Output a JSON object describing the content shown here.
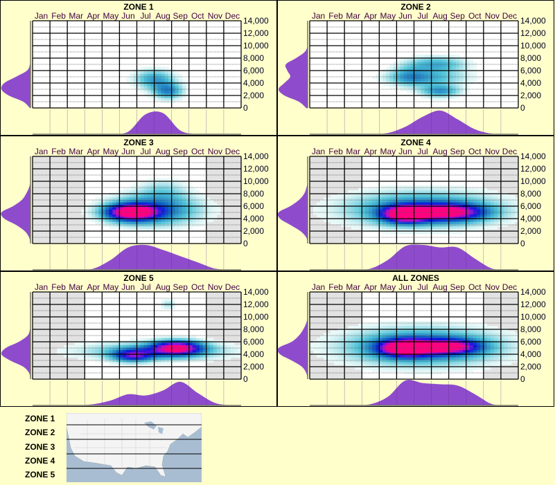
{
  "months": [
    "Jan",
    "Feb",
    "Mar",
    "Apr",
    "May",
    "Jun",
    "Jul",
    "Aug",
    "Sep",
    "Oct",
    "Nov",
    "Dec"
  ],
  "y_ticks": [
    "0",
    "2,000",
    "4,000",
    "6,000",
    "8,000",
    "10,000",
    "12,000",
    "14,000"
  ],
  "colors": {
    "background": "#ffffcc",
    "density": "#8e4ccc",
    "gray": "#e2e2e2",
    "low": "#d6f3f3",
    "mid": "#1560c0",
    "high": "#ff0080"
  },
  "chart_data": [
    {
      "type": "heatmap",
      "title": "ZONE 1",
      "xlabel": "",
      "ylabel": "",
      "ylim": [
        0,
        14000
      ],
      "gray_months": [],
      "blobs": [
        {
          "month": 7.5,
          "elev": 4600,
          "sm": 0.8,
          "se": 1100,
          "w": 0.33
        },
        {
          "month": 8.3,
          "elev": 2700,
          "sm": 0.6,
          "se": 900,
          "w": 0.38
        }
      ],
      "month_density": [
        0,
        0,
        0,
        0,
        0,
        0.1,
        0.8,
        0.85,
        0.15,
        0,
        0,
        0
      ],
      "elev_density": [
        0.02,
        0.25,
        0.75,
        1.0,
        0.9,
        0.5,
        0.12,
        0.02,
        0,
        0,
        0,
        0,
        0,
        0,
        0
      ]
    },
    {
      "type": "heatmap",
      "title": "ZONE 2",
      "xlabel": "",
      "ylabel": "",
      "ylim": [
        0,
        14000
      ],
      "gray_months": [],
      "blobs": [
        {
          "month": 7.8,
          "elev": 7000,
          "sm": 1.2,
          "se": 900,
          "w": 0.3
        },
        {
          "month": 7.2,
          "elev": 4800,
          "sm": 1.6,
          "se": 900,
          "w": 0.28
        },
        {
          "month": 8.0,
          "elev": 2700,
          "sm": 0.8,
          "se": 700,
          "w": 0.36
        },
        {
          "month": 6.2,
          "elev": 5200,
          "sm": 0.7,
          "se": 1200,
          "w": 0.18
        }
      ],
      "month_density": [
        0,
        0,
        0,
        0,
        0.05,
        0.3,
        0.7,
        0.95,
        0.6,
        0.2,
        0.02,
        0
      ],
      "elev_density": [
        0.05,
        0.3,
        0.8,
        1.0,
        0.8,
        0.6,
        0.7,
        0.75,
        0.4,
        0.1,
        0,
        0,
        0,
        0,
        0
      ]
    },
    {
      "type": "heatmap",
      "title": "ZONE 3",
      "xlabel": "",
      "ylabel": "",
      "ylim": [
        0,
        14000
      ],
      "gray_months": [
        1,
        2,
        3,
        3.5,
        11,
        12
      ],
      "blobs": [
        {
          "month": 6.2,
          "elev": 5000,
          "sm": 1.0,
          "se": 900,
          "w": 1.0
        },
        {
          "month": 7.5,
          "elev": 5400,
          "sm": 1.8,
          "se": 1700,
          "w": 0.45
        },
        {
          "month": 8.0,
          "elev": 8500,
          "sm": 1.0,
          "se": 1400,
          "w": 0.15
        }
      ],
      "month_density": [
        0,
        0,
        0,
        0.05,
        0.4,
        0.9,
        1.0,
        0.8,
        0.55,
        0.3,
        0.05,
        0
      ],
      "elev_density": [
        0,
        0.05,
        0.2,
        0.5,
        0.9,
        1.0,
        0.6,
        0.3,
        0.15,
        0.05,
        0,
        0,
        0,
        0,
        0
      ]
    },
    {
      "type": "heatmap",
      "title": "ZONE 4",
      "xlabel": "",
      "ylabel": "",
      "ylim": [
        0,
        14000
      ],
      "gray_months": [
        1,
        2,
        3,
        3.5,
        11,
        12
      ],
      "blobs": [
        {
          "month": 6.0,
          "elev": 4700,
          "sm": 0.9,
          "se": 900,
          "w": 1.0
        },
        {
          "month": 8.5,
          "elev": 5000,
          "sm": 1.4,
          "se": 900,
          "w": 0.8
        },
        {
          "month": 7.0,
          "elev": 5500,
          "sm": 3.0,
          "se": 1900,
          "w": 0.45
        }
      ],
      "month_density": [
        0,
        0,
        0,
        0.05,
        0.4,
        0.95,
        1.0,
        0.9,
        0.9,
        0.45,
        0.05,
        0
      ],
      "elev_density": [
        0,
        0.05,
        0.25,
        0.6,
        0.95,
        1.0,
        0.6,
        0.3,
        0.12,
        0.04,
        0,
        0,
        0,
        0,
        0
      ]
    },
    {
      "type": "heatmap",
      "title": "ZONE 5",
      "xlabel": "",
      "ylabel": "",
      "ylim": [
        0,
        14000
      ],
      "gray_months": [
        1,
        2,
        3,
        3.5,
        11,
        12
      ],
      "blobs": [
        {
          "month": 6.3,
          "elev": 3800,
          "sm": 0.8,
          "se": 700,
          "w": 0.6
        },
        {
          "month": 8.8,
          "elev": 5000,
          "sm": 1.0,
          "se": 800,
          "w": 0.9
        },
        {
          "month": 8.3,
          "elev": 12000,
          "sm": 0.3,
          "se": 600,
          "w": 0.15
        },
        {
          "month": 7.5,
          "elev": 4500,
          "sm": 3.0,
          "se": 1000,
          "w": 0.3
        }
      ],
      "month_density": [
        0,
        0,
        0,
        0.05,
        0.2,
        0.45,
        0.4,
        0.6,
        0.95,
        0.5,
        0.1,
        0
      ],
      "elev_density": [
        0,
        0.05,
        0.25,
        0.7,
        1.0,
        0.85,
        0.4,
        0.1,
        0.02,
        0,
        0,
        0,
        0.02,
        0,
        0
      ]
    },
    {
      "type": "heatmap",
      "title": "ALL ZONES",
      "xlabel": "",
      "ylabel": "",
      "ylim": [
        0,
        14000
      ],
      "gray_months": [
        1,
        2,
        3,
        3.5,
        11,
        12
      ],
      "blobs": [
        {
          "month": 6.0,
          "elev": 5000,
          "sm": 1.0,
          "se": 900,
          "w": 1.0
        },
        {
          "month": 8.5,
          "elev": 5200,
          "sm": 1.2,
          "se": 800,
          "w": 0.75
        },
        {
          "month": 7.0,
          "elev": 5200,
          "sm": 3.0,
          "se": 2000,
          "w": 0.5
        }
      ],
      "month_density": [
        0,
        0,
        0,
        0.05,
        0.35,
        1.0,
        0.9,
        0.85,
        0.8,
        0.45,
        0.05,
        0
      ],
      "elev_density": [
        0,
        0.05,
        0.2,
        0.55,
        0.95,
        1.0,
        0.55,
        0.3,
        0.15,
        0.05,
        0,
        0,
        0,
        0,
        0
      ]
    }
  ],
  "legend": {
    "zones": [
      "ZONE 1",
      "ZONE 2",
      "ZONE 3",
      "ZONE 4",
      "ZONE 5"
    ]
  }
}
